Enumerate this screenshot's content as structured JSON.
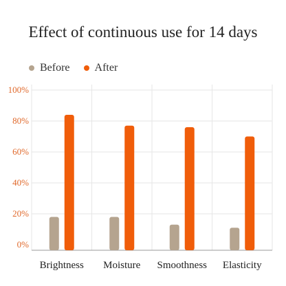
{
  "chart_data": {
    "type": "bar",
    "title": "Effect of continuous use for 14 days",
    "categories": [
      "Brightness",
      "Moisture",
      "Smoothness",
      "Elasticity"
    ],
    "series": [
      {
        "name": "Before",
        "values": [
          18,
          18,
          13,
          11
        ],
        "color": "#b5a48f"
      },
      {
        "name": "After",
        "values": [
          84,
          77,
          76,
          70
        ],
        "color": "#f05d0a"
      }
    ],
    "yticks": [
      "0%",
      "20%",
      "40%",
      "60%",
      "80%",
      "100%"
    ],
    "ylim": [
      0,
      100
    ],
    "grid": true,
    "legend_position": "top-left",
    "tick_color": "#e0682a"
  }
}
